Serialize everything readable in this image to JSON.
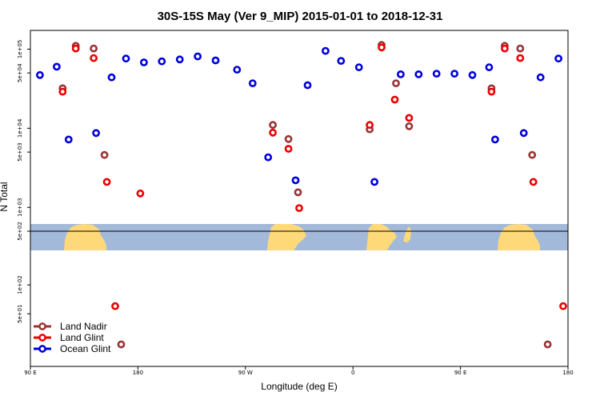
{
  "chart_data": {
    "type": "scatter",
    "title": "30S-15S May (Ver 9_MIP)   2015-01-01 to 2018-12-31",
    "xlabel": "Longitude (deg E)",
    "ylabel": "N Total",
    "x_ticks": [
      {
        "value": 90,
        "label": "90 E"
      },
      {
        "value": 180,
        "label": "180"
      },
      {
        "value": 270,
        "label": "90 W"
      },
      {
        "value": 360,
        "label": "0"
      },
      {
        "value": 450,
        "label": "90 E"
      },
      {
        "value": 540,
        "label": "180"
      }
    ],
    "xlim": [
      90,
      540
    ],
    "y_scale": "log",
    "upper_panel": {
      "ylim": [
        500,
        150000
      ],
      "y_ticks": [
        {
          "value": 100000,
          "label": "1e+05"
        },
        {
          "value": 50000,
          "label": "5e+04"
        },
        {
          "value": 10000,
          "label": "1e+04"
        },
        {
          "value": 5000,
          "label": "5e+03"
        },
        {
          "value": 1000,
          "label": "1e+03"
        },
        {
          "value": 500,
          "label": "5e+02"
        }
      ]
    },
    "lower_panel": {
      "ylim": [
        20,
        220
      ],
      "y_ticks": [
        {
          "value": 100,
          "label": "1e+02"
        },
        {
          "value": 50,
          "label": "5e+01"
        }
      ]
    },
    "colors": {
      "land_nadir": "#993333",
      "land_glint": "#ee0000",
      "ocean_glint": "#0000dd",
      "ocean_band": "#a3b9d9",
      "land_band": "#fed979"
    },
    "legend": {
      "position": "bottom-left",
      "entries": [
        {
          "key": "land_nadir",
          "label": "Land Nadir"
        },
        {
          "key": "land_glint",
          "label": "Land Glint"
        },
        {
          "key": "ocean_glint",
          "label": "Ocean Glint"
        }
      ]
    },
    "series": [
      {
        "name": "Land Nadir",
        "key": "land_nadir",
        "points": [
          {
            "x": 117,
            "y": 32000,
            "panel": "upper"
          },
          {
            "x": 128,
            "y": 110000,
            "panel": "upper"
          },
          {
            "x": 143,
            "y": 102000,
            "panel": "upper"
          },
          {
            "x": 152,
            "y": 4600,
            "panel": "upper"
          },
          {
            "x": 166,
            "y": 24,
            "panel": "lower"
          },
          {
            "x": 293,
            "y": 11000,
            "panel": "upper"
          },
          {
            "x": 306,
            "y": 7300,
            "panel": "upper"
          },
          {
            "x": 314,
            "y": 1550,
            "panel": "upper"
          },
          {
            "x": 374,
            "y": 9700,
            "panel": "upper"
          },
          {
            "x": 384,
            "y": 113000,
            "panel": "upper"
          },
          {
            "x": 396,
            "y": 37000,
            "panel": "upper"
          },
          {
            "x": 407,
            "y": 10600,
            "panel": "upper"
          },
          {
            "x": 476,
            "y": 32000,
            "panel": "upper"
          },
          {
            "x": 487,
            "y": 110000,
            "panel": "upper"
          },
          {
            "x": 500,
            "y": 102000,
            "panel": "upper"
          },
          {
            "x": 510,
            "y": 4600,
            "panel": "upper"
          },
          {
            "x": 523,
            "y": 24,
            "panel": "lower"
          }
        ]
      },
      {
        "name": "Land Glint",
        "key": "land_glint",
        "points": [
          {
            "x": 117,
            "y": 29000,
            "panel": "upper"
          },
          {
            "x": 128,
            "y": 102000,
            "panel": "upper"
          },
          {
            "x": 143,
            "y": 77000,
            "panel": "upper"
          },
          {
            "x": 154,
            "y": 2100,
            "panel": "upper"
          },
          {
            "x": 161,
            "y": 60,
            "panel": "lower"
          },
          {
            "x": 182,
            "y": 1500,
            "panel": "upper"
          },
          {
            "x": 293,
            "y": 8800,
            "panel": "upper"
          },
          {
            "x": 306,
            "y": 5500,
            "panel": "upper"
          },
          {
            "x": 315,
            "y": 980,
            "panel": "upper"
          },
          {
            "x": 374,
            "y": 11000,
            "panel": "upper"
          },
          {
            "x": 384,
            "y": 105000,
            "panel": "upper"
          },
          {
            "x": 395,
            "y": 23000,
            "panel": "upper"
          },
          {
            "x": 407,
            "y": 13500,
            "panel": "upper"
          },
          {
            "x": 476,
            "y": 29000,
            "panel": "upper"
          },
          {
            "x": 487,
            "y": 102000,
            "panel": "upper"
          },
          {
            "x": 500,
            "y": 77000,
            "panel": "upper"
          },
          {
            "x": 511,
            "y": 2100,
            "panel": "upper"
          },
          {
            "x": 536,
            "y": 60,
            "panel": "lower"
          }
        ]
      },
      {
        "name": "Ocean Glint",
        "key": "ocean_glint",
        "points": [
          {
            "x": 98,
            "y": 47000,
            "panel": "upper"
          },
          {
            "x": 112,
            "y": 60000,
            "panel": "upper"
          },
          {
            "x": 122,
            "y": 7200,
            "panel": "upper"
          },
          {
            "x": 145,
            "y": 8700,
            "panel": "upper"
          },
          {
            "x": 158,
            "y": 44000,
            "panel": "upper"
          },
          {
            "x": 170,
            "y": 76000,
            "panel": "upper"
          },
          {
            "x": 185,
            "y": 68000,
            "panel": "upper"
          },
          {
            "x": 200,
            "y": 70000,
            "panel": "upper"
          },
          {
            "x": 215,
            "y": 74000,
            "panel": "upper"
          },
          {
            "x": 230,
            "y": 81000,
            "panel": "upper"
          },
          {
            "x": 245,
            "y": 72000,
            "panel": "upper"
          },
          {
            "x": 263,
            "y": 55000,
            "panel": "upper"
          },
          {
            "x": 276,
            "y": 37000,
            "panel": "upper"
          },
          {
            "x": 289,
            "y": 4300,
            "panel": "upper"
          },
          {
            "x": 312,
            "y": 2200,
            "panel": "upper"
          },
          {
            "x": 322,
            "y": 35000,
            "panel": "upper"
          },
          {
            "x": 337,
            "y": 95000,
            "panel": "upper"
          },
          {
            "x": 350,
            "y": 71000,
            "panel": "upper"
          },
          {
            "x": 365,
            "y": 59000,
            "panel": "upper"
          },
          {
            "x": 378,
            "y": 2100,
            "panel": "upper"
          },
          {
            "x": 400,
            "y": 48000,
            "panel": "upper"
          },
          {
            "x": 415,
            "y": 48000,
            "panel": "upper"
          },
          {
            "x": 430,
            "y": 49000,
            "panel": "upper"
          },
          {
            "x": 445,
            "y": 49000,
            "panel": "upper"
          },
          {
            "x": 460,
            "y": 47000,
            "panel": "upper"
          },
          {
            "x": 474,
            "y": 59000,
            "panel": "upper"
          },
          {
            "x": 479,
            "y": 7200,
            "panel": "upper"
          },
          {
            "x": 503,
            "y": 8700,
            "panel": "upper"
          },
          {
            "x": 517,
            "y": 44000,
            "panel": "upper"
          },
          {
            "x": 532,
            "y": 76000,
            "panel": "upper"
          }
        ]
      }
    ]
  }
}
